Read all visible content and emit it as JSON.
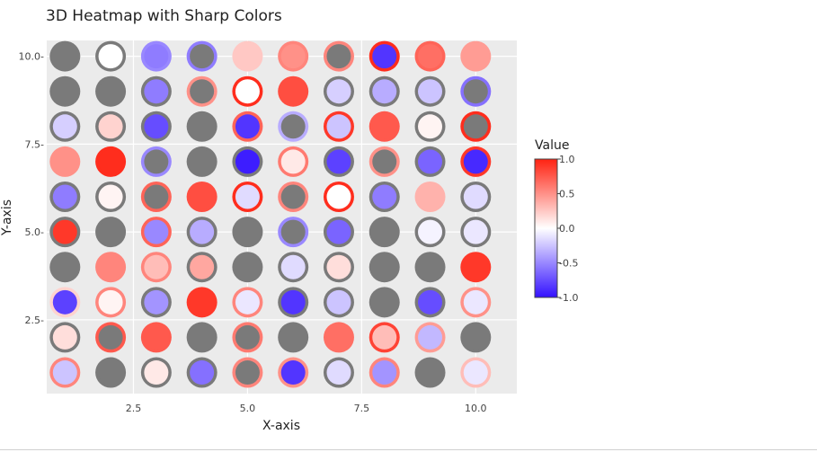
{
  "chart_data": {
    "type": "scatter",
    "title": "3D Heatmap with Sharp Colors",
    "xlabel": "X-axis",
    "ylabel": "Y-axis",
    "xlim": [
      0.6,
      10.9
    ],
    "ylim": [
      0.4,
      10.45
    ],
    "x_ticks": [
      2.5,
      5.0,
      7.5,
      10.0
    ],
    "x_tick_labels": [
      "2.5",
      "5.0",
      "7.5",
      "10.0"
    ],
    "y_ticks": [
      2.5,
      5.0,
      7.5,
      10.0
    ],
    "y_tick_labels": [
      "2.5-",
      "5.0-",
      "7.5-",
      "10.0-"
    ],
    "grid": true,
    "x": [
      1,
      2,
      3,
      4,
      5,
      6,
      7,
      8,
      9,
      10
    ],
    "y": [
      1,
      2,
      3,
      4,
      5,
      6,
      7,
      8,
      9,
      10
    ],
    "colorscale": {
      "low": "#3311ff",
      "mid": "#ffffff",
      "high": "#ff2211",
      "min": -1.0,
      "max": 1.0
    },
    "gray_color": "#7a7a7a",
    "cells_note_columns": "each row lists x=1..10; fill = value (null = gray), ring = outer value (null = gray ring)",
    "rows": [
      {
        "y": 10,
        "fill": [
          null,
          0.0,
          -0.55,
          null,
          0.25,
          0.5,
          null,
          -0.85,
          0.65,
          0.45
        ],
        "ring": [
          null,
          null,
          -0.5,
          -0.55,
          0.25,
          0.55,
          0.55,
          0.95,
          0.7,
          0.45
        ]
      },
      {
        "y": 9,
        "fill": [
          null,
          null,
          -0.55,
          null,
          0.0,
          0.8,
          -0.2,
          -0.35,
          -0.25,
          null
        ],
        "ring": [
          null,
          null,
          null,
          0.5,
          0.95,
          0.8,
          null,
          null,
          null,
          -0.6
        ]
      },
      {
        "y": 8,
        "fill": [
          -0.2,
          0.2,
          -0.75,
          null,
          -0.85,
          null,
          -0.25,
          0.75,
          0.05,
          null
        ],
        "ring": [
          null,
          null,
          null,
          null,
          0.7,
          -0.35,
          0.9,
          0.75,
          null,
          0.95
        ]
      },
      {
        "y": 7,
        "fill": [
          0.5,
          0.95,
          null,
          null,
          -0.95,
          0.1,
          -0.8,
          null,
          -0.65,
          -0.9
        ],
        "ring": [
          0.5,
          0.95,
          -0.5,
          null,
          null,
          0.6,
          null,
          0.5,
          null,
          0.9
        ]
      },
      {
        "y": 6,
        "fill": [
          -0.55,
          0.05,
          null,
          0.8,
          -0.15,
          null,
          0.0,
          -0.55,
          0.35,
          -0.15
        ],
        "ring": [
          null,
          null,
          0.7,
          0.8,
          0.95,
          0.55,
          0.95,
          null,
          0.35,
          null
        ]
      },
      {
        "y": 5,
        "fill": [
          0.9,
          null,
          -0.5,
          -0.35,
          null,
          null,
          -0.65,
          null,
          -0.05,
          -0.1
        ],
        "ring": [
          null,
          null,
          0.7,
          null,
          null,
          -0.5,
          null,
          null,
          null,
          null
        ]
      },
      {
        "y": 4,
        "fill": [
          null,
          0.55,
          0.3,
          0.4,
          null,
          -0.15,
          0.15,
          null,
          null,
          0.9
        ],
        "ring": [
          null,
          0.55,
          0.55,
          null,
          null,
          null,
          null,
          null,
          null,
          0.9
        ]
      },
      {
        "y": 3,
        "fill": [
          -0.8,
          0.05,
          -0.45,
          0.9,
          -0.1,
          -0.85,
          -0.25,
          null,
          -0.75,
          -0.1
        ],
        "ring": [
          0.2,
          0.55,
          null,
          0.9,
          0.55,
          null,
          null,
          null,
          null,
          0.5
        ]
      },
      {
        "y": 2,
        "fill": [
          0.15,
          null,
          0.75,
          null,
          null,
          null,
          0.65,
          0.3,
          -0.3,
          null
        ],
        "ring": [
          null,
          0.75,
          0.75,
          null,
          0.6,
          null,
          0.65,
          0.85,
          0.45,
          null
        ]
      },
      {
        "y": 1,
        "fill": [
          -0.25,
          null,
          0.1,
          -0.6,
          null,
          -0.85,
          -0.15,
          -0.45,
          null,
          -0.1
        ],
        "ring": [
          0.55,
          null,
          null,
          null,
          0.55,
          0.5,
          null,
          0.55,
          null,
          0.3
        ]
      }
    ],
    "colorbar": {
      "title": "Value",
      "ticks": [
        1.0,
        0.5,
        0.0,
        -0.5,
        -1.0
      ],
      "tick_labels": [
        "1.0",
        "0.5",
        "0.0",
        "-0.5",
        "-1.0"
      ]
    }
  }
}
